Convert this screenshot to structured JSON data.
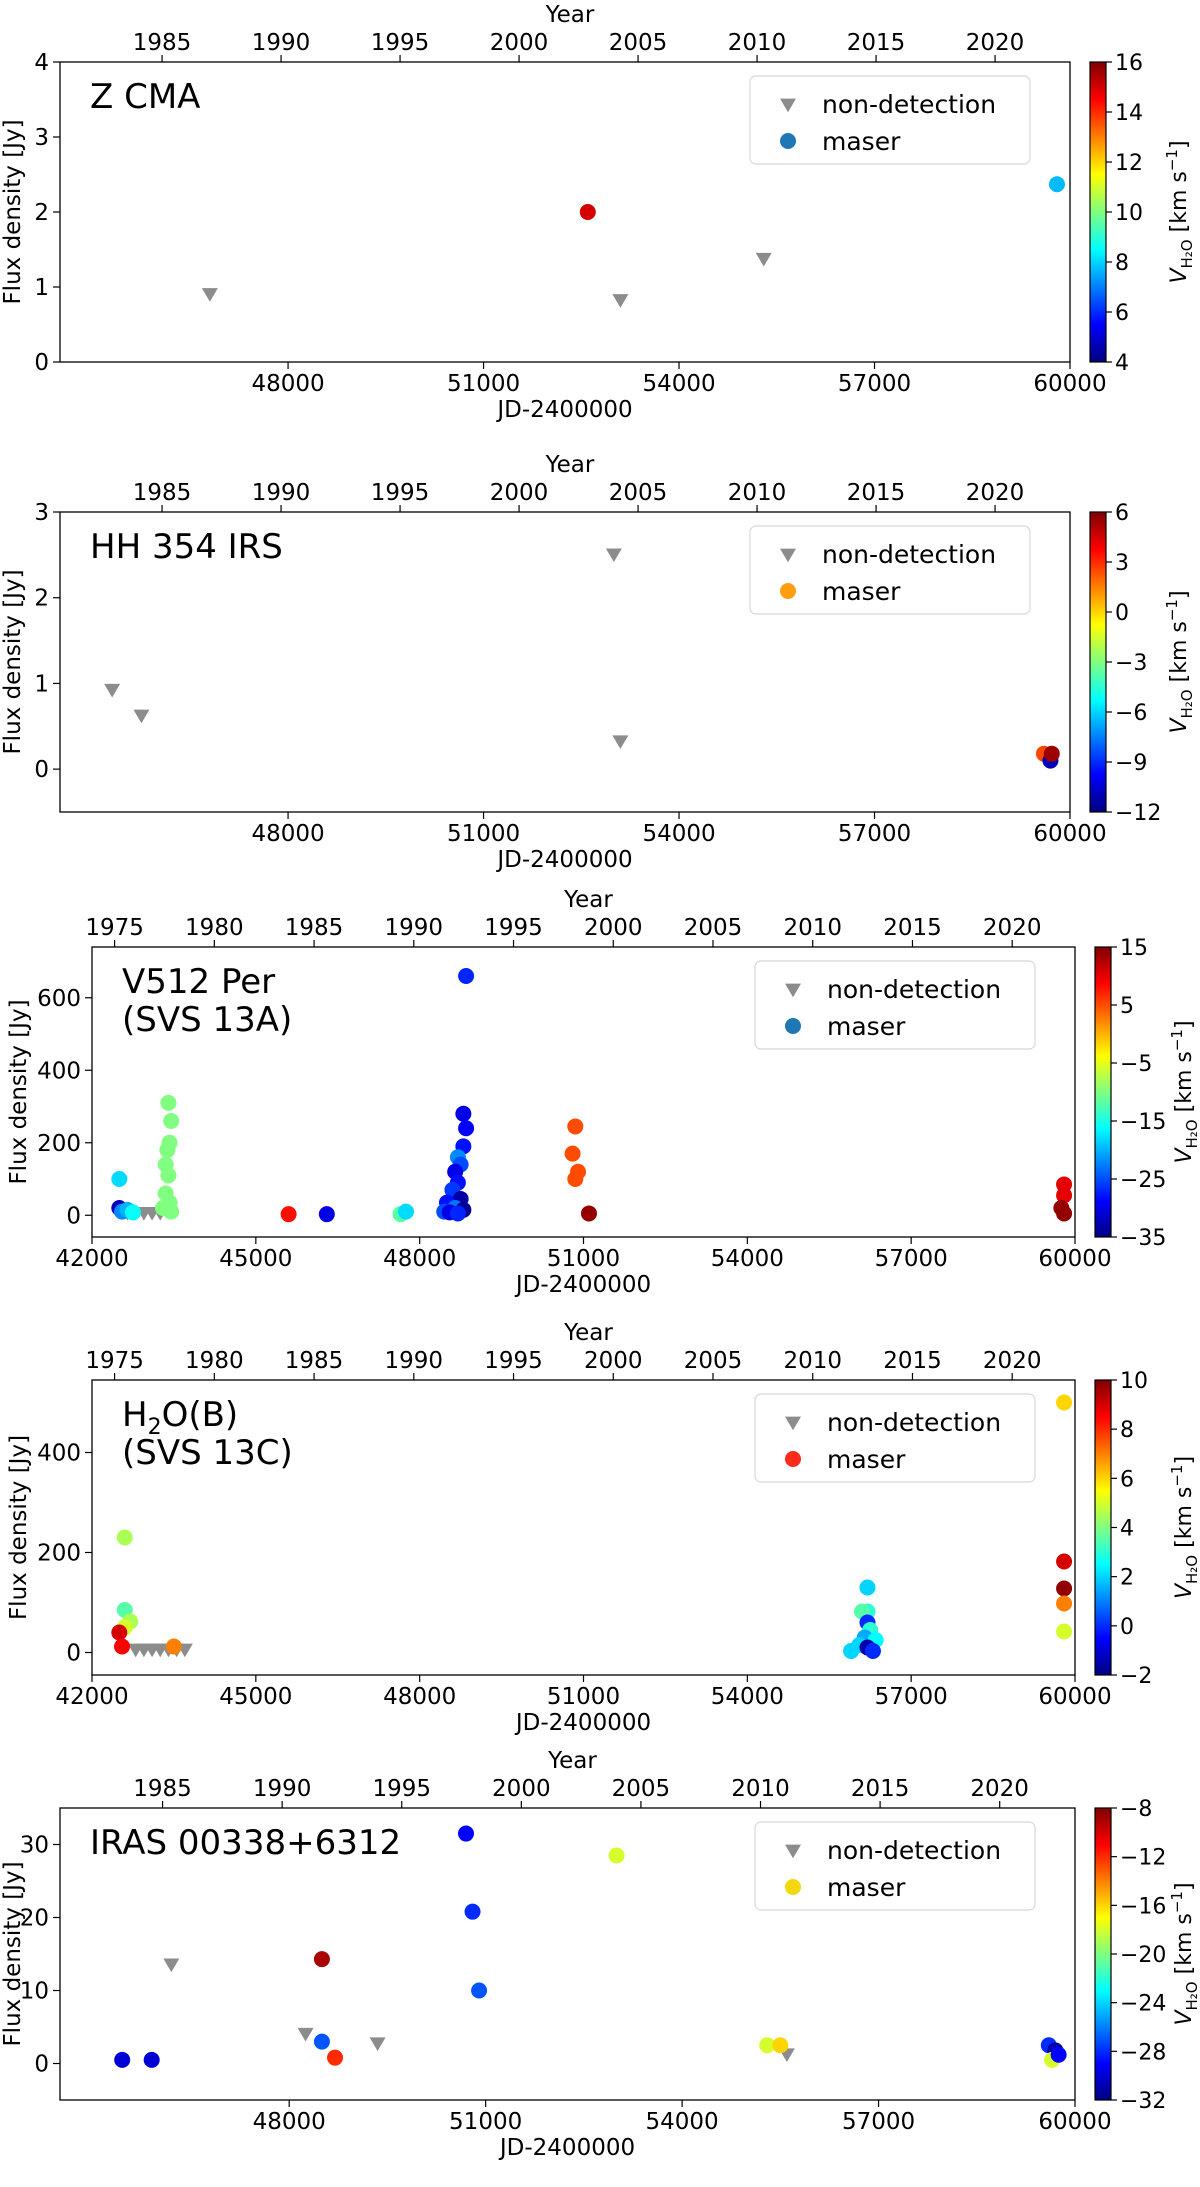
{
  "figure": {
    "panel_titles": [
      "Z CMA",
      "HH 354 IRS",
      "V512 Per (SVS 13A)",
      "H2O(B) (SVS 13C)",
      "IRAS 00338+6312"
    ]
  },
  "chart_data": [
    {
      "type": "scatter",
      "title_lines": [
        "Z CMA"
      ],
      "xlabel": "JD-2400000",
      "ylabel": "Flux density [Jy]",
      "top_xlabel": "Year",
      "xlim": [
        44500,
        60000
      ],
      "xticks": [
        48000,
        51000,
        54000,
        57000,
        60000
      ],
      "ylim": [
        0,
        4
      ],
      "yticks": [
        0,
        1,
        2,
        3,
        4
      ],
      "top_ticks": [
        1985,
        1990,
        1995,
        2000,
        2005,
        2010,
        2015,
        2020
      ],
      "colorbar": {
        "label": "V_H2O [km s^-1]",
        "range": [
          4,
          16
        ],
        "ticks": [
          4,
          6,
          8,
          10,
          12,
          14,
          16
        ]
      },
      "legend": {
        "position": "top-right",
        "entries": [
          "non-detection",
          "maser"
        ],
        "maser_color": "#1f77b4"
      },
      "non_detections": [
        {
          "x": 46800,
          "y": 0.9
        },
        {
          "x": 53100,
          "y": 0.82
        },
        {
          "x": 55300,
          "y": 1.37
        }
      ],
      "masers": [
        {
          "x": 52600,
          "y": 2.0,
          "v": 15.0
        },
        {
          "x": 59800,
          "y": 2.37,
          "v": 7.7
        }
      ]
    },
    {
      "type": "scatter",
      "title_lines": [
        "HH 354 IRS"
      ],
      "xlabel": "JD-2400000",
      "ylabel": "Flux density [Jy]",
      "top_xlabel": "Year",
      "xlim": [
        44500,
        60000
      ],
      "xticks": [
        48000,
        51000,
        54000,
        57000,
        60000
      ],
      "ylim": [
        -0.5,
        3
      ],
      "yticks": [
        0,
        1,
        2,
        3
      ],
      "top_ticks": [
        1985,
        1990,
        1995,
        2000,
        2005,
        2010,
        2015,
        2020
      ],
      "colorbar": {
        "label": "V_H2O [km s^-1]",
        "range": [
          -12,
          6
        ],
        "ticks": [
          -12,
          -9,
          -6,
          -3,
          0,
          3,
          6
        ]
      },
      "legend": {
        "position": "top-right",
        "entries": [
          "non-detection",
          "maser"
        ],
        "maser_color": "#ff9f10"
      },
      "non_detections": [
        {
          "x": 45300,
          "y": 0.92
        },
        {
          "x": 45750,
          "y": 0.62
        },
        {
          "x": 53000,
          "y": 2.5
        },
        {
          "x": 53100,
          "y": 0.32
        }
      ],
      "masers": [
        {
          "x": 59600,
          "y": 0.18,
          "v": 2.5
        },
        {
          "x": 59700,
          "y": 0.1,
          "v": -11.0
        },
        {
          "x": 59720,
          "y": 0.18,
          "v": 5.5
        }
      ]
    },
    {
      "type": "scatter",
      "title_lines": [
        "V512 Per",
        "(SVS 13A)"
      ],
      "xlabel": "JD-2400000",
      "ylabel": "Flux density [Jy]",
      "top_xlabel": "Year",
      "xlim": [
        42000,
        60000
      ],
      "xticks": [
        42000,
        45000,
        48000,
        51000,
        54000,
        57000,
        60000
      ],
      "ylim": [
        -60,
        740
      ],
      "yticks": [
        0,
        200,
        400,
        600
      ],
      "top_ticks": [
        1975,
        1980,
        1985,
        1990,
        1995,
        2000,
        2005,
        2010,
        2015,
        2020
      ],
      "colorbar": {
        "label": "V_H2O [km s^-1]",
        "range": [
          -35,
          15
        ],
        "ticks": [
          -35,
          -25,
          -15,
          -5,
          5,
          15
        ]
      },
      "legend": {
        "position": "top-right",
        "entries": [
          "non-detection",
          "maser"
        ],
        "maser_color": "#1f77b4"
      },
      "non_detections": [
        {
          "x": 42650,
          "y": 5
        },
        {
          "x": 42800,
          "y": 5
        },
        {
          "x": 42950,
          "y": 5
        },
        {
          "x": 43100,
          "y": 5
        },
        {
          "x": 43250,
          "y": 5
        }
      ],
      "masers": [
        {
          "x": 42500,
          "y": 100,
          "v": -18
        },
        {
          "x": 42500,
          "y": 20,
          "v": -32
        },
        {
          "x": 42550,
          "y": 10,
          "v": -22
        },
        {
          "x": 42650,
          "y": 15,
          "v": -20
        },
        {
          "x": 42750,
          "y": 8,
          "v": -16
        },
        {
          "x": 43400,
          "y": 310,
          "v": -10
        },
        {
          "x": 43450,
          "y": 260,
          "v": -10
        },
        {
          "x": 43420,
          "y": 200,
          "v": -10
        },
        {
          "x": 43380,
          "y": 180,
          "v": -10
        },
        {
          "x": 43350,
          "y": 140,
          "v": -10
        },
        {
          "x": 43400,
          "y": 110,
          "v": -10
        },
        {
          "x": 43350,
          "y": 60,
          "v": -10
        },
        {
          "x": 43420,
          "y": 35,
          "v": -10
        },
        {
          "x": 43300,
          "y": 20,
          "v": -10
        },
        {
          "x": 43450,
          "y": 10,
          "v": -10
        },
        {
          "x": 45600,
          "y": 3,
          "v": 8
        },
        {
          "x": 46300,
          "y": 3,
          "v": -30
        },
        {
          "x": 47650,
          "y": 3,
          "v": -12
        },
        {
          "x": 47750,
          "y": 10,
          "v": -18
        },
        {
          "x": 48850,
          "y": 660,
          "v": -27
        },
        {
          "x": 48800,
          "y": 280,
          "v": -30
        },
        {
          "x": 48850,
          "y": 240,
          "v": -29
        },
        {
          "x": 48800,
          "y": 190,
          "v": -28
        },
        {
          "x": 48700,
          "y": 160,
          "v": -22
        },
        {
          "x": 48750,
          "y": 140,
          "v": -25
        },
        {
          "x": 48650,
          "y": 120,
          "v": -30
        },
        {
          "x": 48700,
          "y": 90,
          "v": -28
        },
        {
          "x": 48600,
          "y": 70,
          "v": -26
        },
        {
          "x": 48750,
          "y": 45,
          "v": -33
        },
        {
          "x": 48500,
          "y": 35,
          "v": -28
        },
        {
          "x": 48650,
          "y": 20,
          "v": -23
        },
        {
          "x": 48800,
          "y": 15,
          "v": -34
        },
        {
          "x": 48450,
          "y": 10,
          "v": -25
        },
        {
          "x": 48550,
          "y": 8,
          "v": -30
        },
        {
          "x": 48700,
          "y": 5,
          "v": -27
        },
        {
          "x": 50850,
          "y": 245,
          "v": 5
        },
        {
          "x": 50800,
          "y": 170,
          "v": 5
        },
        {
          "x": 50900,
          "y": 120,
          "v": 5
        },
        {
          "x": 50850,
          "y": 100,
          "v": 5
        },
        {
          "x": 51100,
          "y": 5,
          "v": 14
        },
        {
          "x": 59800,
          "y": 85,
          "v": 10
        },
        {
          "x": 59800,
          "y": 55,
          "v": 10
        },
        {
          "x": 59750,
          "y": 20,
          "v": 14
        },
        {
          "x": 59800,
          "y": 5,
          "v": 14
        }
      ]
    },
    {
      "type": "scatter",
      "title_lines": [
        "H2O(B)",
        "(SVS 13C)"
      ],
      "xlabel": "JD-2400000",
      "ylabel": "Flux density [Jy]",
      "top_xlabel": "Year",
      "xlim": [
        42000,
        60000
      ],
      "xticks": [
        42000,
        45000,
        48000,
        51000,
        54000,
        57000,
        60000
      ],
      "ylim": [
        -45,
        545
      ],
      "yticks": [
        0,
        200,
        400
      ],
      "top_ticks": [
        1975,
        1980,
        1985,
        1990,
        1995,
        2000,
        2005,
        2010,
        2015,
        2020
      ],
      "colorbar": {
        "label": "V_H2O [km s^-1]",
        "range": [
          -2,
          10
        ],
        "ticks": [
          -2,
          0,
          2,
          4,
          6,
          8,
          10
        ]
      },
      "legend": {
        "position": "top-right",
        "entries": [
          "non-detection",
          "maser"
        ],
        "maser_color": "#ff2a1a"
      },
      "non_detections": [
        {
          "x": 42800,
          "y": 5
        },
        {
          "x": 42950,
          "y": 5
        },
        {
          "x": 43100,
          "y": 5
        },
        {
          "x": 43250,
          "y": 5
        },
        {
          "x": 43400,
          "y": 5
        },
        {
          "x": 43550,
          "y": 5
        },
        {
          "x": 43700,
          "y": 5
        }
      ],
      "masers": [
        {
          "x": 42600,
          "y": 230,
          "v": 4.5
        },
        {
          "x": 42600,
          "y": 85,
          "v": 3.5
        },
        {
          "x": 42700,
          "y": 62,
          "v": 4.5
        },
        {
          "x": 42600,
          "y": 50,
          "v": 5
        },
        {
          "x": 42500,
          "y": 40,
          "v": 9
        },
        {
          "x": 42550,
          "y": 12,
          "v": 8.5
        },
        {
          "x": 43500,
          "y": 12,
          "v": 7
        },
        {
          "x": 56200,
          "y": 130,
          "v": 2
        },
        {
          "x": 56200,
          "y": 82,
          "v": 3
        },
        {
          "x": 56100,
          "y": 82,
          "v": 3.5
        },
        {
          "x": 56200,
          "y": 60,
          "v": 0
        },
        {
          "x": 56250,
          "y": 45,
          "v": 3
        },
        {
          "x": 56150,
          "y": 30,
          "v": 1.5
        },
        {
          "x": 56350,
          "y": 25,
          "v": 2.5
        },
        {
          "x": 56050,
          "y": 15,
          "v": 2
        },
        {
          "x": 56200,
          "y": 10,
          "v": -1.5
        },
        {
          "x": 55900,
          "y": 3,
          "v": 2
        },
        {
          "x": 56300,
          "y": 3,
          "v": 0
        },
        {
          "x": 59800,
          "y": 500,
          "v": 6
        },
        {
          "x": 59800,
          "y": 182,
          "v": 9
        },
        {
          "x": 59800,
          "y": 128,
          "v": 9.8
        },
        {
          "x": 59800,
          "y": 98,
          "v": 7
        },
        {
          "x": 59800,
          "y": 42,
          "v": 5
        }
      ]
    },
    {
      "type": "scatter",
      "title_lines": [
        "IRAS 00338+6312"
      ],
      "xlabel": "JD-2400000",
      "ylabel": "Flux density [Jy]",
      "top_xlabel": "Year",
      "xlim": [
        44500,
        60000
      ],
      "xticks": [
        48000,
        51000,
        54000,
        57000,
        60000
      ],
      "ylim": [
        -5,
        35
      ],
      "yticks": [
        0,
        10,
        20,
        30
      ],
      "top_ticks": [
        1985,
        1990,
        1995,
        2000,
        2005,
        2010,
        2015,
        2020
      ],
      "colorbar": {
        "label": "V_H2O [km s^-1]",
        "range": [
          -32,
          -8
        ],
        "ticks": [
          -32,
          -28,
          -24,
          -20,
          -16,
          -12,
          -8
        ]
      },
      "legend": {
        "position": "top-right",
        "entries": [
          "non-detection",
          "maser"
        ],
        "maser_color": "#f4d80e"
      },
      "non_detections": [
        {
          "x": 46200,
          "y": 13.5
        },
        {
          "x": 48250,
          "y": 4
        },
        {
          "x": 49350,
          "y": 2.7
        },
        {
          "x": 55600,
          "y": 1.2
        }
      ],
      "masers": [
        {
          "x": 45450,
          "y": 0.5,
          "v": -30
        },
        {
          "x": 45900,
          "y": 0.5,
          "v": -30
        },
        {
          "x": 48500,
          "y": 14.3,
          "v": -9
        },
        {
          "x": 48500,
          "y": 3,
          "v": -27
        },
        {
          "x": 48700,
          "y": 0.8,
          "v": -12
        },
        {
          "x": 50700,
          "y": 31.5,
          "v": -29
        },
        {
          "x": 50800,
          "y": 20.8,
          "v": -28
        },
        {
          "x": 50900,
          "y": 10,
          "v": -27
        },
        {
          "x": 53000,
          "y": 28.5,
          "v": -18
        },
        {
          "x": 55300,
          "y": 2.5,
          "v": -18
        },
        {
          "x": 55500,
          "y": 2.5,
          "v": -16
        },
        {
          "x": 59600,
          "y": 2.5,
          "v": -28
        },
        {
          "x": 59700,
          "y": 1.8,
          "v": -31
        },
        {
          "x": 59650,
          "y": 0.5,
          "v": -18
        },
        {
          "x": 59750,
          "y": 1.2,
          "v": -29
        }
      ]
    }
  ]
}
